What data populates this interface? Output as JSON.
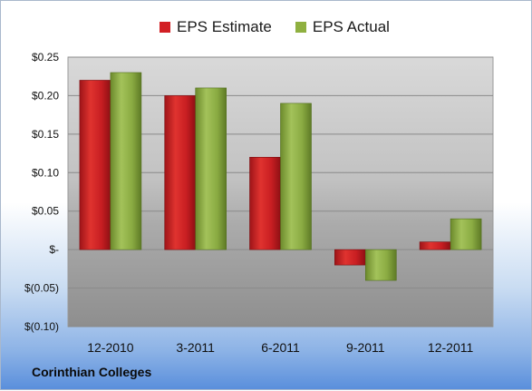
{
  "chart_data": {
    "type": "bar",
    "categories": [
      "12-2010",
      "3-2011",
      "6-2011",
      "9-2011",
      "12-2011"
    ],
    "series": [
      {
        "name": "EPS Estimate",
        "values": [
          0.22,
          0.2,
          0.12,
          -0.02,
          0.01
        ],
        "color": "#d21f24"
      },
      {
        "name": "EPS Actual",
        "values": [
          0.23,
          0.21,
          0.19,
          -0.04,
          0.04
        ],
        "color": "#8fb040"
      }
    ],
    "ylim": [
      -0.1,
      0.25
    ],
    "ytick_labels": [
      "$0.25",
      "$0.20",
      "$0.15",
      "$0.10",
      "$0.05",
      "$-",
      "$(0.05)",
      "$(0.10)"
    ],
    "ytick_values": [
      0.25,
      0.2,
      0.15,
      0.1,
      0.05,
      0.0,
      -0.05,
      -0.1
    ],
    "grid": true,
    "legend_position": "top"
  },
  "footer": {
    "company": "Corinthian Colleges"
  }
}
